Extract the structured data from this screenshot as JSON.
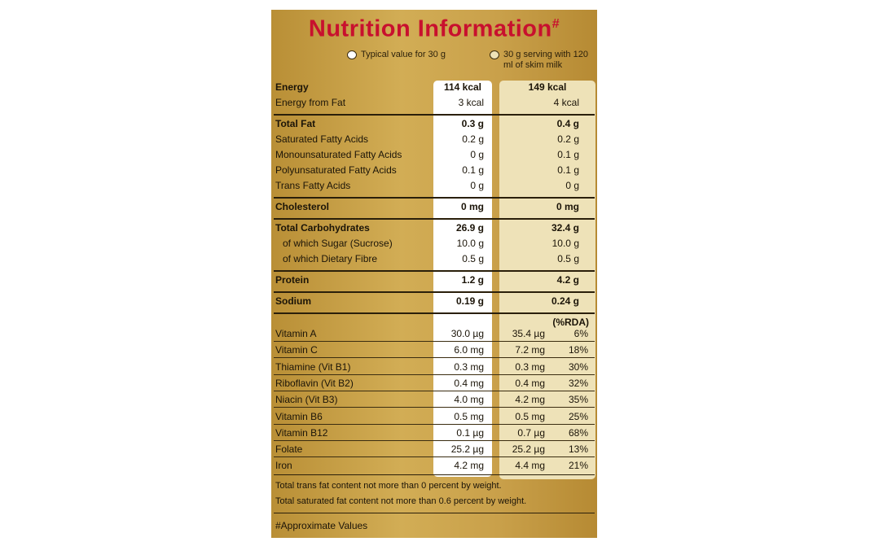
{
  "header": {
    "title": "Nutrition Information",
    "title_mark": "#"
  },
  "legend": [
    "Typical value for 30 g",
    "30 g serving with 120 ml of skim milk"
  ],
  "nutrients": [
    [
      [
        "Energy",
        "114 kcal",
        "149 kcal"
      ],
      [
        "Energy from Fat",
        "3 kcal",
        "4 kcal"
      ]
    ],
    [
      [
        "Total Fat",
        "0.3 g",
        "0.4 g"
      ],
      [
        "Saturated Fatty Acids",
        "0.2 g",
        "0.2 g"
      ],
      [
        "Monounsaturated Fatty Acids",
        "0 g",
        "0.1 g"
      ],
      [
        "Polyunsaturated Fatty Acids",
        "0.1 g",
        "0.1 g"
      ],
      [
        "Trans Fatty Acids",
        "0 g",
        "0 g"
      ]
    ],
    [
      [
        "Cholesterol",
        "0 mg",
        "0 mg"
      ]
    ],
    [
      [
        "Total Carbohydrates",
        "26.9 g",
        "32.4 g"
      ],
      [
        "of which Sugar (Sucrose)",
        "10.0 g",
        "10.0 g"
      ],
      [
        "of which Dietary Fibre",
        "0.5 g",
        "0.5 g"
      ]
    ],
    [
      [
        "Protein",
        "1.2 g",
        "4.2 g"
      ]
    ],
    [
      [
        "Sodium",
        "0.19 g",
        "0.24 g"
      ]
    ]
  ],
  "rda_header": "(%RDA)",
  "vitamins": [
    [
      "Vitamin A",
      "30.0 µg",
      "35.4 µg",
      "6%"
    ],
    [
      "Vitamin C",
      "6.0 mg",
      "7.2 mg",
      "18%"
    ],
    [
      "Thiamine (Vit B1)",
      "0.3 mg",
      "0.3 mg",
      "30%"
    ],
    [
      "Riboflavin (Vit B2)",
      "0.4 mg",
      "0.4 mg",
      "32%"
    ],
    [
      "Niacin (Vit B3)",
      "4.0 mg",
      "4.2 mg",
      "35%"
    ],
    [
      "Vitamin B6",
      "0.5 mg",
      "0.5 mg",
      "25%"
    ],
    [
      "Vitamin B12",
      "0.1 µg",
      "0.7 µg",
      "68%"
    ],
    [
      "Folate",
      "25.2 µg",
      "25.2 µg",
      "13%"
    ],
    [
      "Iron",
      "4.2 mg",
      "4.4 mg",
      "21%"
    ]
  ],
  "notes": [
    "Total trans fat content not more than 0 percent by weight.",
    "Total saturated fat content not more than 0.6 percent by weight."
  ],
  "footnote": "#Approximate Values"
}
